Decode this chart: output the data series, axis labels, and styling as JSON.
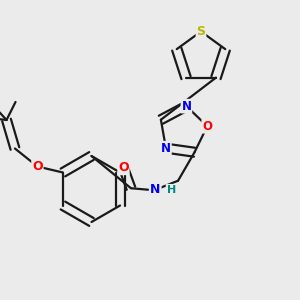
{
  "background_color": "#ebebeb",
  "bond_color": "#1a1a1a",
  "bond_width": 1.6,
  "atom_colors": {
    "S": "#b8b800",
    "O": "#ff0000",
    "N": "#0000ee",
    "H": "#008888",
    "C": "#1a1a1a"
  },
  "fig_width": 3.0,
  "fig_height": 3.0,
  "dpi": 100,
  "xlim": [
    0,
    1
  ],
  "ylim": [
    0,
    1
  ]
}
